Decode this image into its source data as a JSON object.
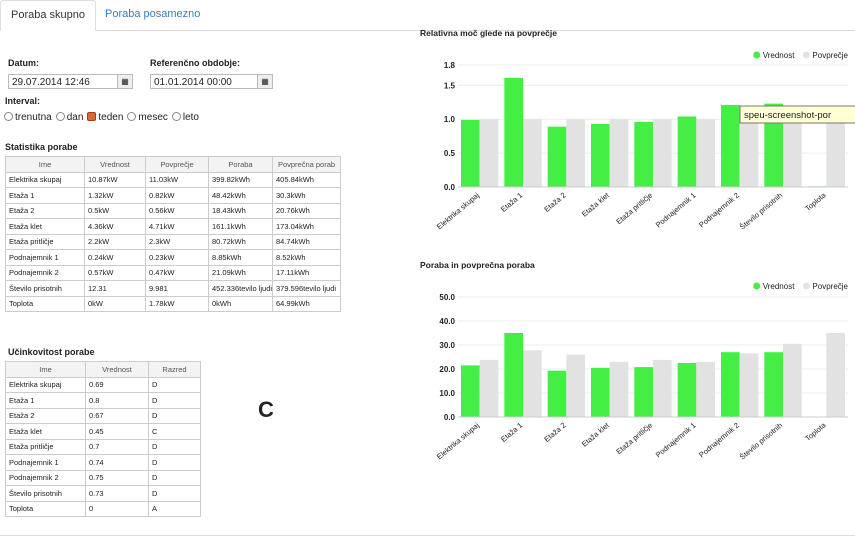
{
  "tabs": [
    "Poraba skupno",
    "Poraba posamezno"
  ],
  "form": {
    "date_label": "Datum:",
    "date": "29.07.2014 12:46",
    "ref_label": "Referenčno obdobje:",
    "ref": "01.01.2014 00:00",
    "interval_label": "Interval:",
    "intervals": [
      "trenutna",
      "dan",
      "teden",
      "mesec",
      "leto"
    ],
    "selected_interval": "teden"
  },
  "stats_table": {
    "title": "Statistika porabe",
    "header": [
      "Ime",
      "Vrednost",
      "Povprečje",
      "Poraba",
      "Povprečna porab"
    ],
    "rows": [
      [
        "Elektrika skupaj",
        "10.87kW",
        "11.03kW",
        "399.82kWh",
        "405.84kWh"
      ],
      [
        "Etaža 1",
        "1.32kW",
        "0.82kW",
        "48.42kWh",
        "30.3kWh"
      ],
      [
        "Etaža 2",
        "0.5kW",
        "0.56kW",
        "18.43kWh",
        "20.76kWh"
      ],
      [
        "Etaža klet",
        "4.36kW",
        "4.71kW",
        "161.1kWh",
        "173.04kWh"
      ],
      [
        "Etaža pritličje",
        "2.2kW",
        "2.3kW",
        "80.72kWh",
        "84.74kWh"
      ],
      [
        "Podnajemnik 1",
        "0.24kW",
        "0.23kW",
        "8.85kWh",
        "8.52kWh"
      ],
      [
        "Podnajemnik 2",
        "0.57kW",
        "0.47kW",
        "21.09kWh",
        "17.11kWh"
      ],
      [
        "Število prisotnih",
        "12.31",
        "9.981",
        "452.336tevilo ljudi",
        "379.596tevilo ljudi"
      ],
      [
        "Toplota",
        "0kW",
        "1.78kW",
        "0kWh",
        "64.99kWh"
      ]
    ]
  },
  "efficiency_table": {
    "title": "Učinkovitost porabe",
    "header": [
      "Ime",
      "Vrednost",
      "Razred"
    ],
    "rows": [
      [
        "Elektrika skupaj",
        "0.69",
        "D"
      ],
      [
        "Etaža 1",
        "0.8",
        "D"
      ],
      [
        "Etaža 2",
        "0.67",
        "D"
      ],
      [
        "Etaža klet",
        "0.45",
        "C"
      ],
      [
        "Etaža pritličje",
        "0.7",
        "D"
      ],
      [
        "Podnajemnik 1",
        "0.74",
        "D"
      ],
      [
        "Podnajemnik 2",
        "0.75",
        "D"
      ],
      [
        "Število prisotnih",
        "0.73",
        "D"
      ],
      [
        "Toplota",
        "0",
        "A"
      ]
    ]
  },
  "marker": "C",
  "tooltip": "speu-screenshot-por",
  "chart_data": [
    {
      "type": "bar",
      "title": "Relativna moč glede na povprečje",
      "categories": [
        "Elektrika skupaj",
        "Etaža 1",
        "Etaža 2",
        "Etaža klet",
        "Etaža pritličje",
        "Podnajemnik 1",
        "Podnajemnik 2",
        "Število prisotnih",
        "Toplota"
      ],
      "series": [
        {
          "name": "Vrednost",
          "color": "#44ee44",
          "values": [
            0.99,
            1.61,
            0.89,
            0.93,
            0.96,
            1.04,
            1.21,
            1.23,
            0.01
          ]
        },
        {
          "name": "Povprečje",
          "color": "#e2e2e2",
          "values": [
            1,
            1,
            1,
            1,
            1,
            1,
            1,
            1,
            1
          ]
        }
      ],
      "ylim": [
        0,
        1.8
      ],
      "yticks": [
        {
          "value": 0,
          "label": "0.0"
        },
        0.5,
        {
          "value": 1,
          "label": "1.0"
        },
        1.5,
        1.8
      ],
      "grid": true,
      "legend": "top-right"
    },
    {
      "type": "bar",
      "title": "Poraba in povprečna poraba",
      "categories": [
        "Elektrika skupaj",
        "Etaža 1",
        "Etaža 2",
        "Etaža klet",
        "Etaža pritličje",
        "Podnajemnik 1",
        "Podnajemnik 2",
        "Število prisotnih",
        "Toplota"
      ],
      "series": [
        {
          "name": "Vrednost",
          "color": "#44ee44",
          "values": [
            21.5,
            35,
            19.3,
            20.5,
            20.8,
            22.5,
            27,
            27,
            0.2
          ]
        },
        {
          "name": "Povprečje",
          "color": "#e2e2e2",
          "values": [
            23.8,
            27.8,
            26,
            23,
            23.8,
            23,
            26.5,
            30.5,
            35
          ]
        }
      ],
      "ylim": [
        0,
        50
      ],
      "yticks": [
        {
          "value": 0,
          "label": "0.0"
        },
        {
          "value": 10,
          "label": "10.0"
        },
        {
          "value": 20,
          "label": "20.0"
        },
        {
          "value": 30,
          "label": "30.0"
        },
        {
          "value": 40,
          "label": "40.0"
        },
        {
          "value": 50,
          "label": "50.0"
        }
      ],
      "grid": true,
      "legend": "top-right"
    }
  ]
}
